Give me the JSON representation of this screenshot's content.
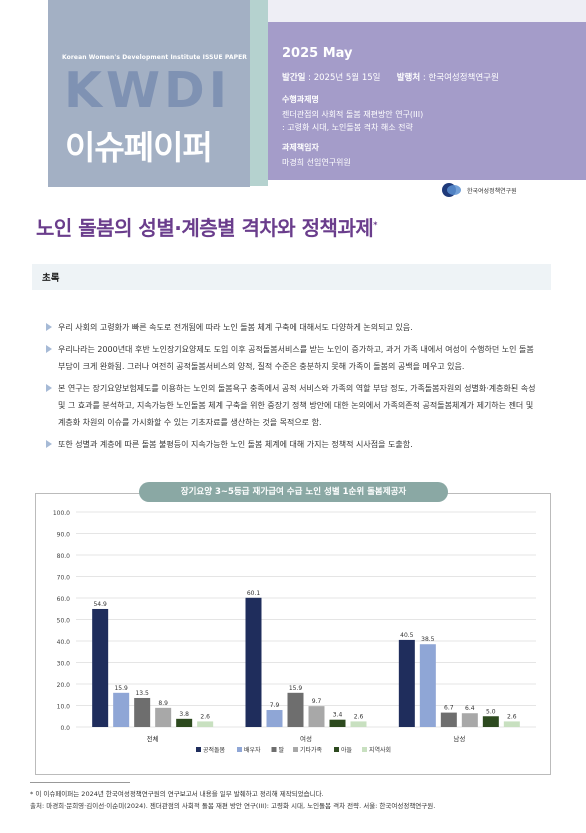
{
  "header": {
    "issue_paper": "Korean Women's Development Institute ISSUE PAPER",
    "kwdi": "KWDI",
    "issue_title": "이슈페이퍼",
    "year": "2025 May",
    "pub_date_label": "발간일",
    "pub_date": ": 2025년 5월 15일",
    "publisher_label": "발행처",
    "publisher": ": 한국여성정책연구원",
    "task_heading": "수행과제명",
    "task_line1": "젠더관점의 사회적 돌봄 재편방안 연구(III)",
    "task_line2": ": 고령화 시대, 노인돌봄 격차 해소 전략",
    "lead_heading": "과제책임자",
    "lead_name": "마경희 선임연구위원",
    "logo_text": "한국여성정책연구원"
  },
  "title": "노인 돌봄의 성별·계층별 격차와 정책과제",
  "title_mark": "*",
  "abstract_label": "초록",
  "bullets": [
    "우리 사회의 고령화가 빠른 속도로 전개됨에 따라 노인 돌봄 체계 구축에 대해서도 다양하게 논의되고 있음.",
    "우리나라는 2000년대 후반 노인장기요양제도 도입 이후 공적돌봄서비스를 받는 노인이 증가하고, 과거 가족 내에서 여성이 수행하던 노인 돌봄 부담이 크게 완화됨. 그러나 여전히 공적돌봄서비스의 양적, 질적 수준은 충분하지 못해 가족이 돌봄의 공백을 메우고 있음.",
    "본 연구는 장기요양보험제도를 이용하는 노인의 돌봄욕구 충족에서 공적 서비스와 가족의 역할 부담 정도, 가족돌봄자원의 성별화·계층화된 속성 및 그 효과를 분석하고, 지속가능한 노인돌봄 체계 구축을 위한 중장기 정책 방안에 대한 논의에서 가족의존적 공적돌봄체계가 제기하는 젠더 및 계층화 차원의 이슈를 가시화할 수 있는 기초자료를 생산하는 것을 목적으로 함.",
    "또한 성별과 계층에 따른 돌봄 불평등이 지속가능한 노인 돌봄 체계에 대해 가지는 정책적 시사점을 도출함."
  ],
  "chart_data": {
    "type": "bar",
    "title": "장기요양 3~5등급 재가급여 수급 노인 성별 1순위 돌봄제공자",
    "categories": [
      "전체",
      "여성",
      "남성"
    ],
    "ylim": [
      0,
      100
    ],
    "yticks": [
      "0.0",
      "10.0",
      "20.0",
      "30.0",
      "40.0",
      "50.0",
      "60.0",
      "70.0",
      "80.0",
      "90.0",
      "100.0"
    ],
    "series": [
      {
        "name": "공적돌봄",
        "color": "#1f2d5c",
        "values": [
          54.9,
          60.1,
          40.5
        ]
      },
      {
        "name": "배우자",
        "color": "#8fa6d6",
        "values": [
          15.9,
          7.9,
          38.5
        ]
      },
      {
        "name": "딸",
        "color": "#6e6e6e",
        "values": [
          13.5,
          15.9,
          6.7
        ]
      },
      {
        "name": "기타가족",
        "color": "#a8a8a8",
        "values": [
          8.9,
          9.7,
          6.4
        ]
      },
      {
        "name": "아들",
        "color": "#2d4a1f",
        "values": [
          3.8,
          3.4,
          5.0
        ]
      },
      {
        "name": "지역사회",
        "color": "#c8e0c0",
        "values": [
          2.6,
          2.6,
          2.6
        ]
      }
    ],
    "legend_position": "bottom",
    "grid": true
  },
  "footnote": [
    "* 이 이슈페이퍼는 2024년 한국여성정책연구원의 연구보고서 내용을 일부 발췌하고 정리해 제작되었습니다.",
    "출처: 마경희·문희영·김이선·이순미(2024). 젠더관점의 사회적 돌봄 재편 방안 연구(III): 고령화 시대, 노인돌봄 격차 전략. 서울: 한국여성정책연구원."
  ]
}
